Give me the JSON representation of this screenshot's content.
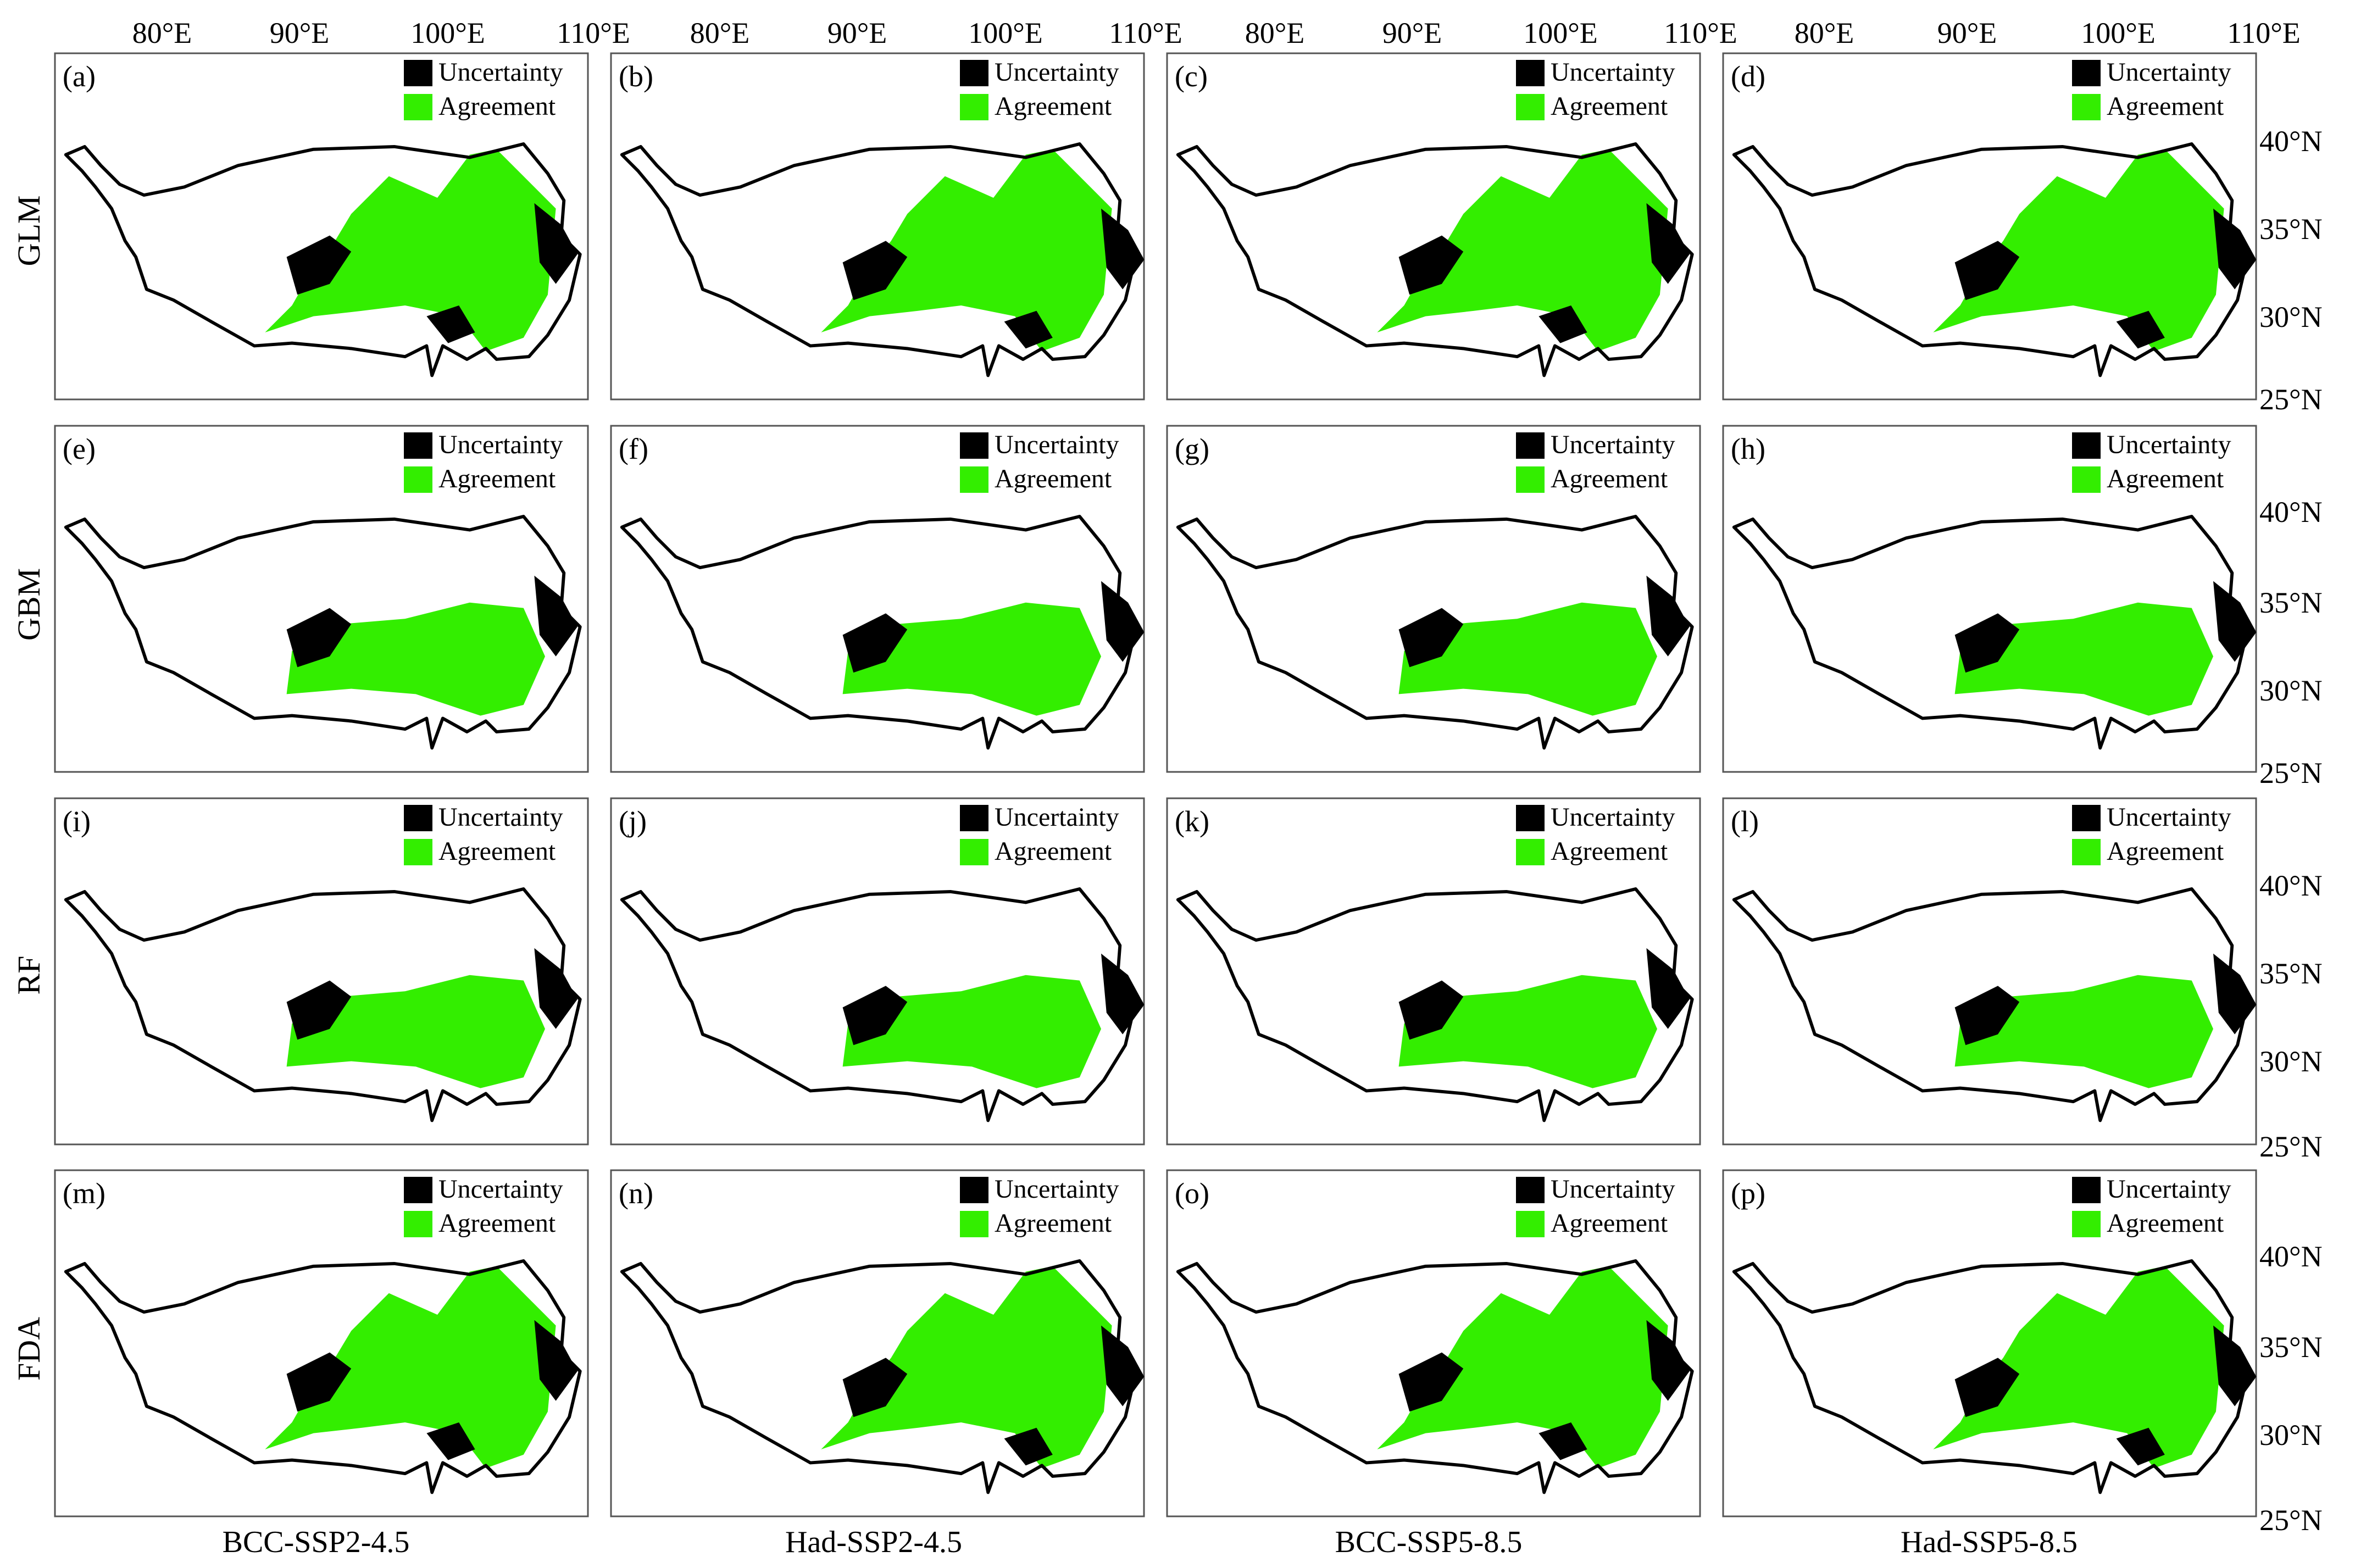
{
  "x_ticks": [
    "80°E",
    "90°E",
    "100°E",
    "110°E"
  ],
  "y_ticks": [
    "40°N",
    "35°N",
    "30°N",
    "25°N"
  ],
  "rows": [
    "GLM",
    "GBM",
    "RF",
    "FDA"
  ],
  "columns": [
    "BCC-SSP2-4.5",
    "Had-SSP2-4.5",
    "BCC-SSP5-8.5",
    "Had-SSP5-8.5"
  ],
  "panels": [
    "(a)",
    "(b)",
    "(c)",
    "(d)",
    "(e)",
    "(f)",
    "(g)",
    "(h)",
    "(i)",
    "(j)",
    "(k)",
    "(l)",
    "(m)",
    "(n)",
    "(o)",
    "(p)"
  ],
  "legend": {
    "uncertainty": {
      "label": "Uncertainty",
      "color": "#000000"
    },
    "agreement": {
      "label": "Agreement",
      "color": "#33ee00"
    }
  },
  "colors": {
    "agreement": "#33ee00",
    "uncertainty": "#000000",
    "outline": "#000000"
  }
}
